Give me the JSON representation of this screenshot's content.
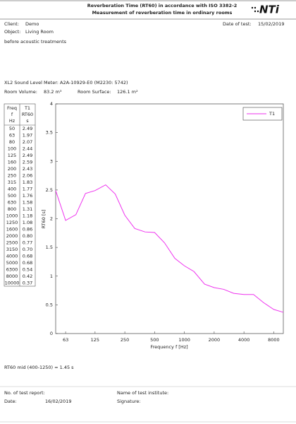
{
  "header": {
    "title": "Reverberation Time (RT60) in accordance with ISO 3382-2",
    "subtitle": "Measurement of reverberation time in ordinary rooms",
    "logo": "NTi"
  },
  "info": {
    "client_label": "Client:",
    "client": "Demo",
    "object_label": "Object:",
    "object": "Living Room",
    "date_label": "Date of test:",
    "date": "15/02/2019",
    "note": "before acoustic treatments",
    "device": "XL2 Sound Level Meter: A2A-10929-E0 (M2230: 5742)",
    "volume_label": "Room Volume:",
    "volume": "83.2 m³",
    "surface_label": "Room Surface:",
    "surface": "126.1 m²"
  },
  "table": {
    "header": [
      [
        "Freq",
        "f",
        "Hz"
      ],
      [
        "RT60",
        "s"
      ]
    ]
  },
  "chart_data": {
    "type": "line",
    "x": [
      50,
      63,
      80,
      100,
      125,
      160,
      200,
      250,
      315,
      400,
      500,
      630,
      800,
      1000,
      1250,
      1600,
      2000,
      2500,
      3150,
      4000,
      5000,
      6300,
      8000,
      10000
    ],
    "series": [
      {
        "name": "T1",
        "color": "#ee33ee",
        "values": [
          2.49,
          1.97,
          2.07,
          2.44,
          2.49,
          2.59,
          2.43,
          2.06,
          1.83,
          1.77,
          1.76,
          1.58,
          1.31,
          1.18,
          1.08,
          0.86,
          0.8,
          0.77,
          0.7,
          0.68,
          0.68,
          0.54,
          0.42,
          0.37
        ],
        "value_labels": [
          "2.49",
          "1.97",
          "2.07",
          "2.44",
          "2.49",
          "2.59",
          "2.43",
          "2.06",
          "1.83",
          "1.77",
          "1.76",
          "1.58",
          "1.31",
          "1.18",
          "1.08",
          "0.86",
          "0.80",
          "0.77",
          "0.70",
          "0.68",
          "0.68",
          "0.54",
          "0.42",
          "0.37"
        ]
      }
    ],
    "xlabel": "Frequency f [Hz]",
    "ylabel": "RT60 [s]",
    "xscale": "log",
    "xlim": [
      50,
      10000
    ],
    "ylim": [
      0,
      4
    ],
    "xticks": [
      63,
      125,
      250,
      500,
      1000,
      2000,
      4000,
      8000
    ],
    "yticks": [
      0,
      0.5,
      1,
      1.5,
      2,
      2.5,
      3,
      3.5,
      4
    ],
    "grid": false,
    "legend": "upper right"
  },
  "summary": "RT60 mid (400-1250) = 1.45 s",
  "footer": {
    "report_label": "No. of test report:",
    "date_label": "Date:",
    "date": "16/02/2019",
    "institute_label": "Name of test institute:",
    "signature_label": "Signature:"
  }
}
